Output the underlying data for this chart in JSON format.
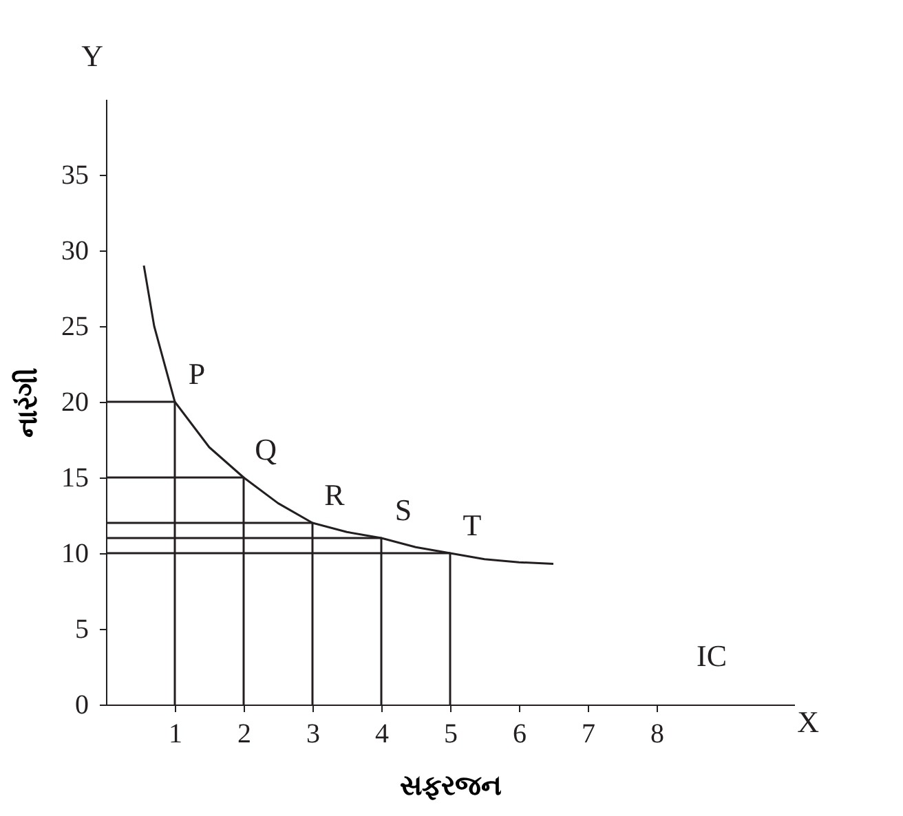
{
  "chart_data": {
    "type": "line",
    "xlabel": "સફરજન",
    "ylabel": "નારંગી",
    "xlim": [
      0,
      10
    ],
    "ylim": [
      0,
      40
    ],
    "xticks": [
      1,
      2,
      3,
      4,
      5,
      6,
      7,
      8
    ],
    "yticks": [
      0,
      5,
      10,
      15,
      20,
      25,
      30,
      35
    ],
    "grid": false,
    "legend": false,
    "marker": "none",
    "line_style": "solid",
    "series": [
      {
        "color": "#231f20",
        "x": [
          0.55,
          0.7,
          1,
          1.5,
          2,
          2.5,
          3,
          3.5,
          4,
          4.5,
          5,
          5.5,
          6,
          6.5
        ],
        "values": [
          29,
          25,
          20,
          17,
          15,
          13.3,
          12,
          11.4,
          11,
          10.4,
          10,
          9.6,
          9.4,
          9.3
        ]
      },
      {
        "color": "#231f20",
        "x": [
          0,
          1,
          1
        ],
        "values": [
          20,
          20,
          0
        ]
      },
      {
        "color": "#231f20",
        "x": [
          0,
          2,
          2
        ],
        "values": [
          15,
          15,
          0
        ]
      },
      {
        "color": "#231f20",
        "x": [
          0,
          3,
          3
        ],
        "values": [
          12,
          12,
          0
        ]
      },
      {
        "color": "#231f20",
        "x": [
          0,
          4,
          4
        ],
        "values": [
          11,
          11,
          0
        ]
      },
      {
        "color": "#231f20",
        "x": [
          0,
          5,
          5
        ],
        "values": [
          10,
          10,
          0
        ]
      }
    ],
    "annotations": [
      {
        "text": "P",
        "x": 1,
        "y": 20
      },
      {
        "text": "Q",
        "x": 2,
        "y": 15
      },
      {
        "text": "R",
        "x": 3,
        "y": 12
      },
      {
        "text": "S",
        "x": 4,
        "y": 11
      },
      {
        "text": "T",
        "x": 5,
        "y": 10
      },
      "IC",
      "X",
      "Y"
    ]
  }
}
